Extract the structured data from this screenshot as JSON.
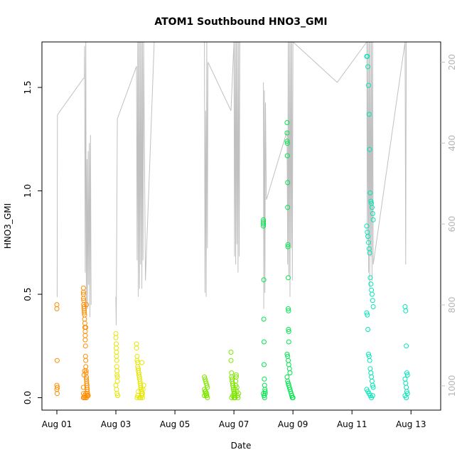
{
  "chart_data": {
    "type": "scatter",
    "title": "ATOM1 Southbound HNO3_GMI",
    "xlabel": "Date",
    "ylabel": "HNO3_GMI",
    "x_ticks": [
      "Aug 01",
      "Aug 03",
      "Aug 05",
      "Aug 07",
      "Aug 09",
      "Aug 11",
      "Aug 13"
    ],
    "xlim": [
      0.0,
      12.5
    ],
    "ylim": [
      -0.06,
      1.72
    ],
    "y_ticks": [
      0.0,
      0.5,
      1.0,
      1.5
    ],
    "y_right": {
      "ticks": [
        200,
        400,
        600,
        800,
        1000
      ],
      "lim_top": 150,
      "lim_bottom": 1060,
      "color": "#c0c0c0",
      "series": [
        {
          "x": [
            0.0,
            0.01,
            0.02,
            0.9,
            0.93,
            0.94,
            0.96,
            0.98,
            1.0,
            1.02,
            1.04,
            1.06,
            1.08,
            1.1,
            1.12,
            1.14,
            1.16
          ],
          "y": [
            780,
            780,
            330,
            240,
            240,
            160,
            720,
            140,
            820,
            440,
            810,
            420,
            750,
            400,
            830,
            380,
            800
          ]
        },
        {
          "x": [
            2.0,
            2.01,
            2.05,
            2.1,
            2.7,
            2.72,
            2.74,
            2.76,
            2.78,
            2.8,
            2.82,
            2.84,
            2.86,
            2.88,
            2.9,
            2.92,
            2.94,
            3.0,
            3.3
          ],
          "y": [
            780,
            850,
            340,
            330,
            210,
            690,
            150,
            780,
            150,
            760,
            150,
            700,
            150,
            760,
            150,
            690,
            150,
            740,
            150
          ]
        },
        {
          "x": [
            5.0,
            5.02,
            5.04,
            5.06,
            5.08,
            5.1,
            5.12,
            5.9,
            6.0,
            6.02,
            6.04,
            6.06,
            6.08,
            6.1,
            6.12,
            6.14,
            6.16,
            6.18,
            6.2
          ],
          "y": [
            150,
            770,
            320,
            780,
            150,
            660,
            200,
            320,
            150,
            680,
            150,
            700,
            150,
            650,
            150,
            720,
            150,
            680,
            150
          ]
        },
        {
          "x": [
            7.0,
            7.01,
            7.03,
            7.05,
            7.07,
            7.1,
            7.8,
            7.82,
            7.84,
            7.86,
            7.88,
            7.9,
            7.92,
            7.94,
            7.96,
            7.98,
            8.0,
            9.5,
            10.5
          ],
          "y": [
            250,
            810,
            270,
            770,
            300,
            540,
            370,
            700,
            150,
            730,
            150,
            780,
            150,
            660,
            150,
            740,
            150,
            250,
            150
          ]
        },
        {
          "x": [
            10.5,
            10.52,
            10.54,
            10.56,
            10.58,
            10.6,
            10.62,
            10.64,
            10.66,
            10.68,
            10.7,
            10.72,
            11.8,
            11.82,
            11.84
          ],
          "y": [
            150,
            640,
            150,
            720,
            150,
            760,
            150,
            680,
            150,
            740,
            150,
            700,
            150,
            700,
            150
          ]
        }
      ]
    },
    "series": [
      {
        "color": "#ff8c00",
        "x": [
          0.0,
          0.0,
          0.01,
          0.0,
          0.02,
          0.0,
          0.01,
          0.9,
          0.9,
          0.9,
          0.9,
          0.91,
          0.91,
          0.92,
          0.92,
          0.93,
          0.93,
          0.94,
          0.94,
          0.95,
          0.95,
          0.96,
          0.96,
          0.97,
          0.97,
          0.98,
          0.98,
          0.99,
          0.99,
          1.0,
          1.0,
          1.01,
          1.01,
          1.02,
          1.02,
          1.03,
          1.03,
          1.04,
          1.05,
          1.06,
          0.9,
          0.9,
          0.9,
          0.92,
          0.94,
          0.96,
          0.98,
          1.0,
          1.02,
          0.92,
          0.94,
          0.96,
          0.98,
          1.0
        ],
        "y": [
          0.45,
          0.43,
          0.18,
          0.06,
          0.05,
          0.04,
          0.02,
          0.53,
          0.51,
          0.5,
          0.48,
          0.47,
          0.45,
          0.44,
          0.43,
          0.42,
          0.41,
          0.4,
          0.38,
          0.36,
          0.34,
          0.3,
          0.28,
          0.25,
          0.2,
          0.18,
          0.15,
          0.13,
          0.12,
          0.1,
          0.09,
          0.08,
          0.07,
          0.06,
          0.05,
          0.04,
          0.03,
          0.02,
          0.01,
          0.01,
          0.0,
          0.02,
          0.05,
          0.0,
          0.01,
          0.0,
          0.02,
          0.0,
          0.01,
          0.11,
          0.13,
          0.32,
          0.34,
          0.45
        ]
      },
      {
        "color": "#e6e600",
        "x": [
          2.0,
          2.0,
          2.01,
          2.01,
          2.02,
          2.02,
          2.03,
          2.03,
          2.04,
          2.04,
          2.05,
          2.05,
          2.0,
          2.02,
          2.04,
          2.06,
          2.7,
          2.7,
          2.72,
          2.72,
          2.74,
          2.74,
          2.76,
          2.76,
          2.78,
          2.78,
          2.8,
          2.8,
          2.82,
          2.82,
          2.84,
          2.84,
          2.86,
          2.86,
          2.88,
          2.88,
          2.9,
          2.9,
          2.92,
          2.94,
          2.72,
          2.74,
          2.76,
          2.8,
          2.84,
          2.88
        ],
        "y": [
          0.31,
          0.29,
          0.26,
          0.24,
          0.22,
          0.2,
          0.18,
          0.15,
          0.13,
          0.11,
          0.1,
          0.08,
          0.06,
          0.04,
          0.02,
          0.01,
          0.26,
          0.24,
          0.2,
          0.18,
          0.17,
          0.15,
          0.14,
          0.13,
          0.12,
          0.11,
          0.1,
          0.09,
          0.08,
          0.07,
          0.06,
          0.05,
          0.04,
          0.03,
          0.02,
          0.01,
          0.0,
          0.02,
          0.04,
          0.06,
          0.0,
          0.01,
          0.03,
          0.0,
          0.0,
          0.17
        ]
      },
      {
        "color": "#7fe600",
        "x": [
          5.0,
          5.02,
          5.04,
          5.06,
          5.08,
          5.1,
          5.0,
          5.02,
          5.04,
          5.06,
          5.08,
          5.1,
          5.0,
          5.04,
          5.08,
          5.9,
          5.9,
          5.92,
          5.92,
          5.94,
          5.94,
          5.96,
          5.96,
          5.98,
          5.98,
          6.0,
          6.0,
          6.02,
          6.02,
          6.04,
          6.04,
          6.06,
          6.06,
          6.08,
          6.08,
          6.1,
          6.1,
          6.12,
          6.14,
          6.16,
          5.92,
          5.96,
          6.0,
          6.04
        ],
        "y": [
          0.1,
          0.09,
          0.08,
          0.07,
          0.06,
          0.05,
          0.04,
          0.03,
          0.02,
          0.01,
          0.02,
          0.0,
          0.01,
          0.03,
          0.01,
          0.22,
          0.18,
          0.12,
          0.1,
          0.09,
          0.08,
          0.07,
          0.06,
          0.05,
          0.04,
          0.03,
          0.02,
          0.01,
          0.0,
          0.02,
          0.04,
          0.06,
          0.08,
          0.1,
          0.11,
          0.05,
          0.03,
          0.01,
          0.0,
          0.02,
          0.0,
          0.01,
          0.0,
          0.0
        ]
      },
      {
        "color": "#00e64d",
        "x": [
          7.0,
          7.0,
          7.0,
          7.0,
          7.01,
          7.01,
          7.02,
          7.02,
          7.03,
          7.04,
          7.05,
          7.06,
          7.0,
          7.02,
          7.04,
          7.06,
          7.8,
          7.8,
          7.8,
          7.81,
          7.81,
          7.82,
          7.82,
          7.83,
          7.83,
          7.84,
          7.84,
          7.85,
          7.85,
          7.86,
          7.86,
          7.8,
          7.82,
          7.84,
          7.86,
          7.88,
          7.9,
          7.8,
          7.82,
          7.84,
          7.86,
          7.88,
          7.9,
          7.92,
          7.94,
          7.96,
          7.98,
          8.0
        ],
        "y": [
          0.86,
          0.85,
          0.84,
          0.83,
          0.57,
          0.38,
          0.27,
          0.16,
          0.09,
          0.06,
          0.04,
          0.03,
          0.02,
          0.01,
          0.0,
          0.02,
          1.33,
          1.28,
          1.24,
          1.23,
          1.17,
          1.04,
          0.92,
          0.74,
          0.73,
          0.58,
          0.43,
          0.42,
          0.33,
          0.32,
          0.27,
          0.21,
          0.2,
          0.18,
          0.16,
          0.14,
          0.12,
          0.1,
          0.08,
          0.07,
          0.06,
          0.05,
          0.04,
          0.03,
          0.02,
          0.01,
          0.0,
          0.0
        ]
      },
      {
        "color": "#00e6b8",
        "x": [
          10.5,
          10.52,
          10.54,
          10.56,
          10.58,
          10.6,
          10.62,
          10.64,
          10.66,
          10.68,
          10.7,
          10.72,
          10.5,
          10.52,
          10.54,
          10.56,
          10.58,
          10.6,
          10.62,
          10.64,
          10.66,
          10.68,
          10.7,
          10.72,
          10.5,
          10.52,
          10.54,
          10.56,
          10.58,
          10.6,
          10.62,
          10.64,
          10.66,
          10.68,
          10.7,
          10.72,
          10.5,
          10.54,
          10.58,
          10.62,
          10.66,
          10.7,
          11.8,
          11.82,
          11.84,
          11.86,
          11.88,
          11.8,
          11.82,
          11.84,
          11.86,
          11.88,
          11.8,
          11.84
        ],
        "y": [
          1.65,
          1.65,
          1.6,
          1.51,
          1.37,
          1.2,
          0.99,
          0.95,
          0.94,
          0.92,
          0.89,
          0.86,
          0.83,
          0.8,
          0.78,
          0.75,
          0.72,
          0.7,
          0.58,
          0.55,
          0.52,
          0.5,
          0.47,
          0.44,
          0.41,
          0.4,
          0.33,
          0.21,
          0.2,
          0.18,
          0.14,
          0.12,
          0.1,
          0.08,
          0.06,
          0.05,
          0.04,
          0.03,
          0.02,
          0.01,
          0.0,
          0.01,
          0.44,
          0.42,
          0.25,
          0.12,
          0.11,
          0.09,
          0.07,
          0.05,
          0.03,
          0.02,
          0.01,
          0.0
        ]
      }
    ]
  }
}
